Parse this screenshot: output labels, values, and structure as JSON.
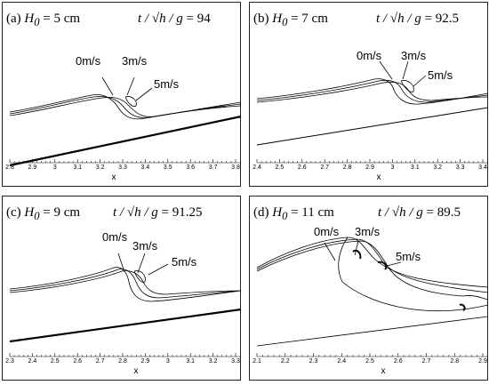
{
  "panels": [
    {
      "label": "(a)",
      "h0_symbol": "H",
      "h0_sub": "0",
      "h0_value": "= 5 cm",
      "time_expr": "t / √h / g",
      "time_value": "= 94",
      "velocity_labels": [
        "0m/s",
        "3m/s",
        "5m/s"
      ],
      "x_axis_label": "x",
      "x_ticks": [
        "2.8",
        "2.9",
        "3",
        "3.1",
        "3.2",
        "3.3",
        "3.4",
        "3.5",
        "3.6",
        "3.7",
        "3.8"
      ]
    },
    {
      "label": "(b)",
      "h0_symbol": "H",
      "h0_sub": "0",
      "h0_value": "= 7 cm",
      "time_expr": "t / √h / g",
      "time_value": "= 92.5",
      "velocity_labels": [
        "0m/s",
        "3m/s",
        "5m/s"
      ],
      "x_axis_label": "x",
      "x_ticks": [
        "2.4",
        "2.5",
        "2.6",
        "2.7",
        "2.8",
        "2.9",
        "3",
        "3.1",
        "3.2",
        "3.3",
        "3.4"
      ]
    },
    {
      "label": "(c)",
      "h0_symbol": "H",
      "h0_sub": "0",
      "h0_value": "= 9 cm",
      "time_expr": "t / √h / g",
      "time_value": "= 91.25",
      "velocity_labels": [
        "0m/s",
        "3m/s",
        "5m/s"
      ],
      "x_axis_label": "x",
      "x_ticks": [
        "2.3",
        "2.4",
        "2.5",
        "2.6",
        "2.7",
        "2.8",
        "2.9",
        "3",
        "3.1",
        "3.2",
        "3.3"
      ]
    },
    {
      "label": "(d)",
      "h0_symbol": "H",
      "h0_sub": "0",
      "h0_value": "= 11 cm",
      "time_expr": "t / √h / g",
      "time_value": "= 89.5",
      "velocity_labels": [
        "0m/s",
        "3m/s",
        "5m/s"
      ],
      "x_axis_label": "x",
      "x_ticks": [
        "2.1",
        "2.2",
        "2.3",
        "2.4",
        "2.5",
        "2.6",
        "2.7",
        "2.8",
        "2.9"
      ]
    }
  ]
}
